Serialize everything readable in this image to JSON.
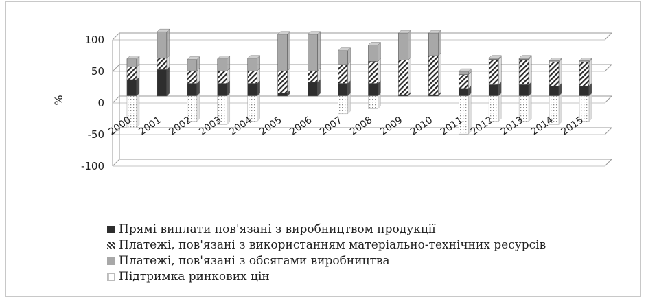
{
  "chart_data": {
    "type": "bar",
    "stacked": true,
    "three_d": true,
    "categories": [
      "2000",
      "2001",
      "2002",
      "2003",
      "2004",
      "2005",
      "2006",
      "2007",
      "2008",
      "2009",
      "2010",
      "2011",
      "2012",
      "2013",
      "2014",
      "2015"
    ],
    "series": [
      {
        "name": "Прямі виплати пов'язані з виробництвом продукції",
        "values": [
          26,
          42,
          20,
          20,
          20,
          5,
          22,
          20,
          20,
          2,
          2,
          12,
          18,
          18,
          16,
          16
        ],
        "color": "#2e2e2e",
        "pattern": "solid"
      },
      {
        "name": "Платежі, пов'язані з використанням матеріально-технічних ресурсів",
        "values": [
          20,
          18,
          20,
          20,
          20,
          35,
          18,
          30,
          35,
          55,
          62,
          22,
          40,
          40,
          38,
          38
        ],
        "color": "#3a3a3a",
        "pattern": "diagonal"
      },
      {
        "name": "Платежі, пов'язані з обсягами виробництва",
        "values": [
          13,
          42,
          18,
          19,
          20,
          58,
          58,
          22,
          26,
          43,
          36,
          5,
          2,
          2,
          2,
          2
        ],
        "color": "#a8a8a8",
        "pattern": "solid"
      },
      {
        "name": "Підтримка ринкових цін",
        "values": [
          -50,
          0,
          -40,
          -45,
          -40,
          0,
          0,
          -28,
          -20,
          0,
          0,
          -60,
          -40,
          -40,
          -45,
          -40
        ],
        "color": "#999999",
        "pattern": "dotted"
      }
    ],
    "ylabel": "%",
    "ylim": [
      -100,
      100
    ],
    "yticks": [
      -100,
      -50,
      0,
      50,
      100
    ],
    "grid": true,
    "legend_position": "bottom-left"
  }
}
